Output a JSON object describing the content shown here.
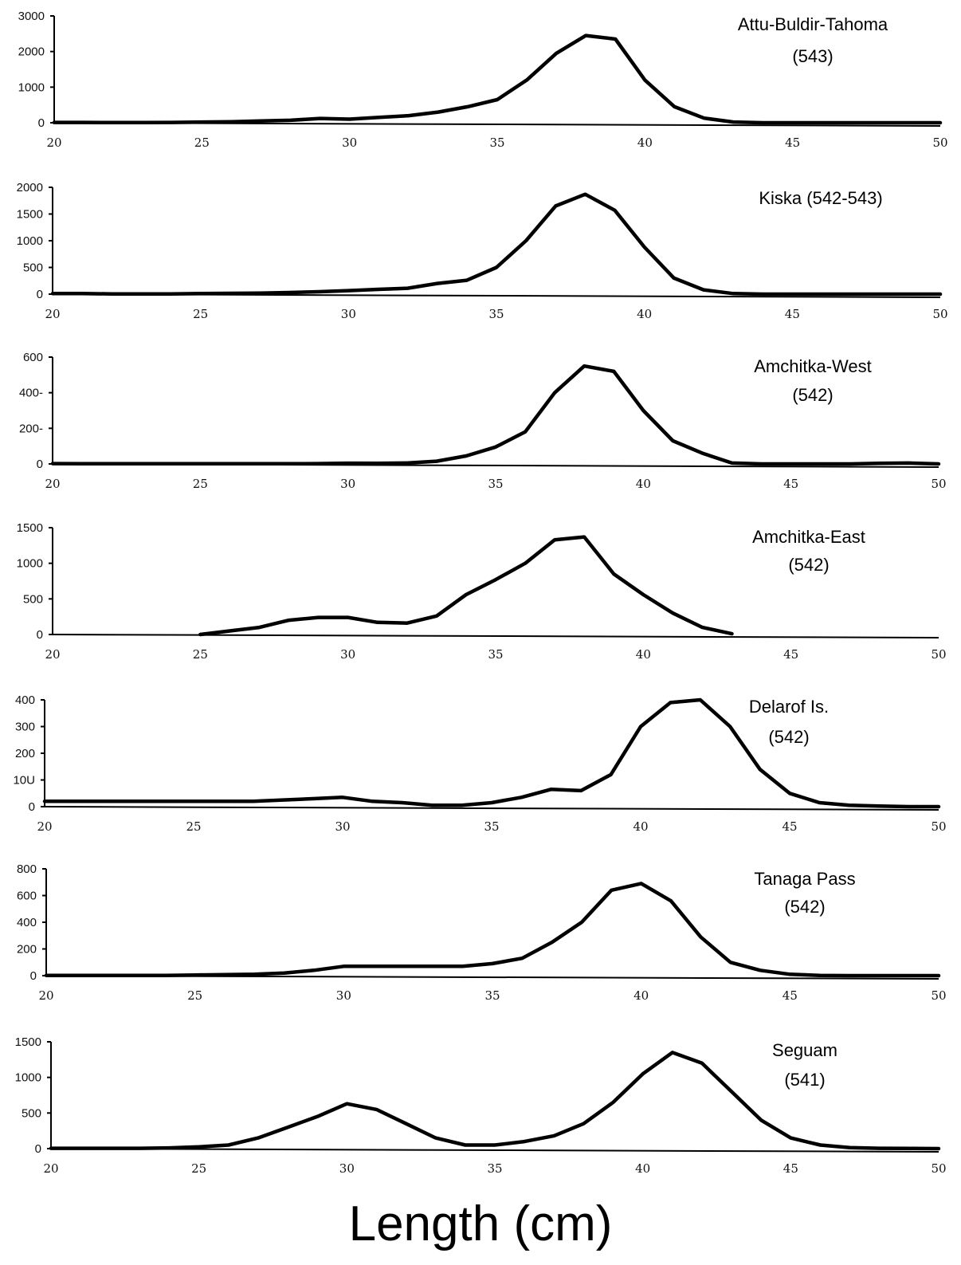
{
  "xlabel": "Length (cm)",
  "chart_data": [
    {
      "type": "line",
      "title": "Attu-Buldir-Tahoma",
      "subtitle": "(543)",
      "xlim": [
        20,
        50
      ],
      "ylim": [
        0,
        3000
      ],
      "xticks": [
        20,
        25,
        30,
        35,
        40,
        45,
        50
      ],
      "yticks": [
        0,
        1000,
        2000,
        3000
      ],
      "x": [
        20,
        21,
        22,
        23,
        24,
        25,
        26,
        27,
        28,
        29,
        30,
        31,
        32,
        33,
        34,
        35,
        36,
        37,
        38,
        39,
        40,
        41,
        42,
        43,
        44,
        45,
        46,
        47,
        48,
        49,
        50
      ],
      "values": [
        10,
        10,
        5,
        5,
        10,
        20,
        30,
        50,
        70,
        120,
        100,
        150,
        200,
        300,
        450,
        650,
        1200,
        1950,
        2450,
        2350,
        1200,
        450,
        130,
        20,
        0,
        0,
        0,
        0,
        0,
        0,
        0
      ]
    },
    {
      "type": "line",
      "title": "Kiska (542-543)",
      "subtitle": "",
      "xlim": [
        20,
        50
      ],
      "ylim": [
        0,
        2000
      ],
      "xticks": [
        20,
        25,
        30,
        35,
        40,
        45,
        50
      ],
      "yticks": [
        0,
        500,
        1000,
        1500,
        2000
      ],
      "x": [
        20,
        21,
        22,
        23,
        24,
        25,
        26,
        27,
        28,
        29,
        30,
        31,
        32,
        33,
        34,
        35,
        36,
        37,
        38,
        39,
        40,
        41,
        42,
        43,
        44,
        45,
        46,
        47,
        48,
        49,
        50
      ],
      "values": [
        10,
        10,
        5,
        5,
        5,
        10,
        15,
        20,
        30,
        45,
        65,
        90,
        110,
        200,
        260,
        500,
        1000,
        1650,
        1870,
        1570,
        880,
        300,
        80,
        10,
        0,
        0,
        0,
        0,
        0,
        0,
        0
      ]
    },
    {
      "type": "line",
      "title": "Amchitka-West",
      "subtitle": "(542)",
      "xlim": [
        20,
        50
      ],
      "ylim": [
        0,
        600
      ],
      "xticks": [
        20,
        25,
        30,
        35,
        40,
        45,
        50
      ],
      "yticks": [
        0,
        200,
        400,
        600
      ],
      "ytick_labels": [
        "0",
        "200-",
        "400-",
        "600"
      ],
      "x": [
        20,
        21,
        22,
        23,
        24,
        25,
        26,
        27,
        28,
        29,
        30,
        31,
        32,
        33,
        34,
        35,
        36,
        37,
        38,
        39,
        40,
        41,
        42,
        43,
        44,
        45,
        46,
        47,
        48,
        49,
        50
      ],
      "values": [
        2,
        1,
        1,
        1,
        1,
        1,
        1,
        1,
        1,
        2,
        4,
        3,
        5,
        15,
        45,
        95,
        180,
        400,
        550,
        520,
        300,
        130,
        60,
        5,
        0,
        0,
        0,
        0,
        3,
        5,
        0
      ]
    },
    {
      "type": "line",
      "title": "Amchitka-East",
      "subtitle": "(542)",
      "xlim": [
        20,
        50
      ],
      "ylim": [
        0,
        1500
      ],
      "xticks": [
        20,
        25,
        30,
        35,
        40,
        45,
        50
      ],
      "yticks": [
        0,
        500,
        1000,
        1500
      ],
      "x": [
        25,
        26,
        27,
        28,
        29,
        30,
        31,
        32,
        33,
        34,
        35,
        36,
        37,
        38,
        39,
        40,
        41,
        42,
        43
      ],
      "values": [
        0,
        50,
        100,
        200,
        240,
        240,
        170,
        160,
        260,
        560,
        770,
        1000,
        1330,
        1370,
        850,
        560,
        300,
        100,
        10
      ]
    },
    {
      "type": "line",
      "title": "Delarof Is.",
      "subtitle": "(542)",
      "xlim": [
        20,
        50
      ],
      "ylim": [
        0,
        400
      ],
      "xticks": [
        20,
        25,
        30,
        35,
        40,
        45,
        50
      ],
      "yticks": [
        0,
        100,
        200,
        300,
        400
      ],
      "ytick_labels": [
        "0",
        "10U",
        "200",
        "300",
        "400"
      ],
      "x": [
        20,
        21,
        22,
        23,
        24,
        25,
        26,
        27,
        28,
        29,
        30,
        31,
        32,
        33,
        34,
        35,
        36,
        37,
        38,
        39,
        40,
        41,
        42,
        43,
        44,
        45,
        46,
        47,
        48,
        49,
        50
      ],
      "values": [
        20,
        20,
        20,
        20,
        20,
        20,
        20,
        20,
        25,
        30,
        35,
        20,
        15,
        5,
        5,
        15,
        35,
        65,
        60,
        120,
        300,
        390,
        400,
        300,
        140,
        50,
        15,
        5,
        2,
        0,
        0
      ]
    },
    {
      "type": "line",
      "title": "Tanaga Pass",
      "subtitle": "(542)",
      "xlim": [
        20,
        50
      ],
      "ylim": [
        0,
        800
      ],
      "xticks": [
        20,
        25,
        30,
        35,
        40,
        45,
        50
      ],
      "yticks": [
        0,
        200,
        400,
        600,
        800
      ],
      "x": [
        20,
        21,
        22,
        23,
        24,
        25,
        26,
        27,
        28,
        29,
        30,
        31,
        32,
        33,
        34,
        35,
        36,
        37,
        38,
        39,
        40,
        41,
        42,
        43,
        44,
        45,
        46,
        47,
        48,
        49,
        50
      ],
      "values": [
        2,
        2,
        2,
        2,
        2,
        5,
        8,
        10,
        20,
        40,
        70,
        70,
        70,
        70,
        70,
        90,
        130,
        250,
        400,
        640,
        690,
        560,
        290,
        100,
        40,
        10,
        2,
        0,
        0,
        0,
        0
      ]
    },
    {
      "type": "line",
      "title": "Seguam",
      "subtitle": "(541)",
      "xlim": [
        20,
        50
      ],
      "ylim": [
        0,
        1500
      ],
      "xticks": [
        20,
        25,
        30,
        35,
        40,
        45,
        50
      ],
      "yticks": [
        0,
        500,
        1000,
        1500
      ],
      "x": [
        20,
        21,
        22,
        23,
        24,
        25,
        26,
        27,
        28,
        29,
        30,
        31,
        32,
        33,
        34,
        35,
        36,
        37,
        38,
        39,
        40,
        41,
        42,
        43,
        44,
        45,
        46,
        47,
        48,
        49,
        50
      ],
      "values": [
        5,
        5,
        5,
        5,
        10,
        25,
        50,
        150,
        300,
        450,
        630,
        550,
        350,
        150,
        50,
        50,
        100,
        180,
        350,
        650,
        1050,
        1350,
        1200,
        800,
        400,
        150,
        50,
        15,
        5,
        2,
        0
      ]
    }
  ]
}
